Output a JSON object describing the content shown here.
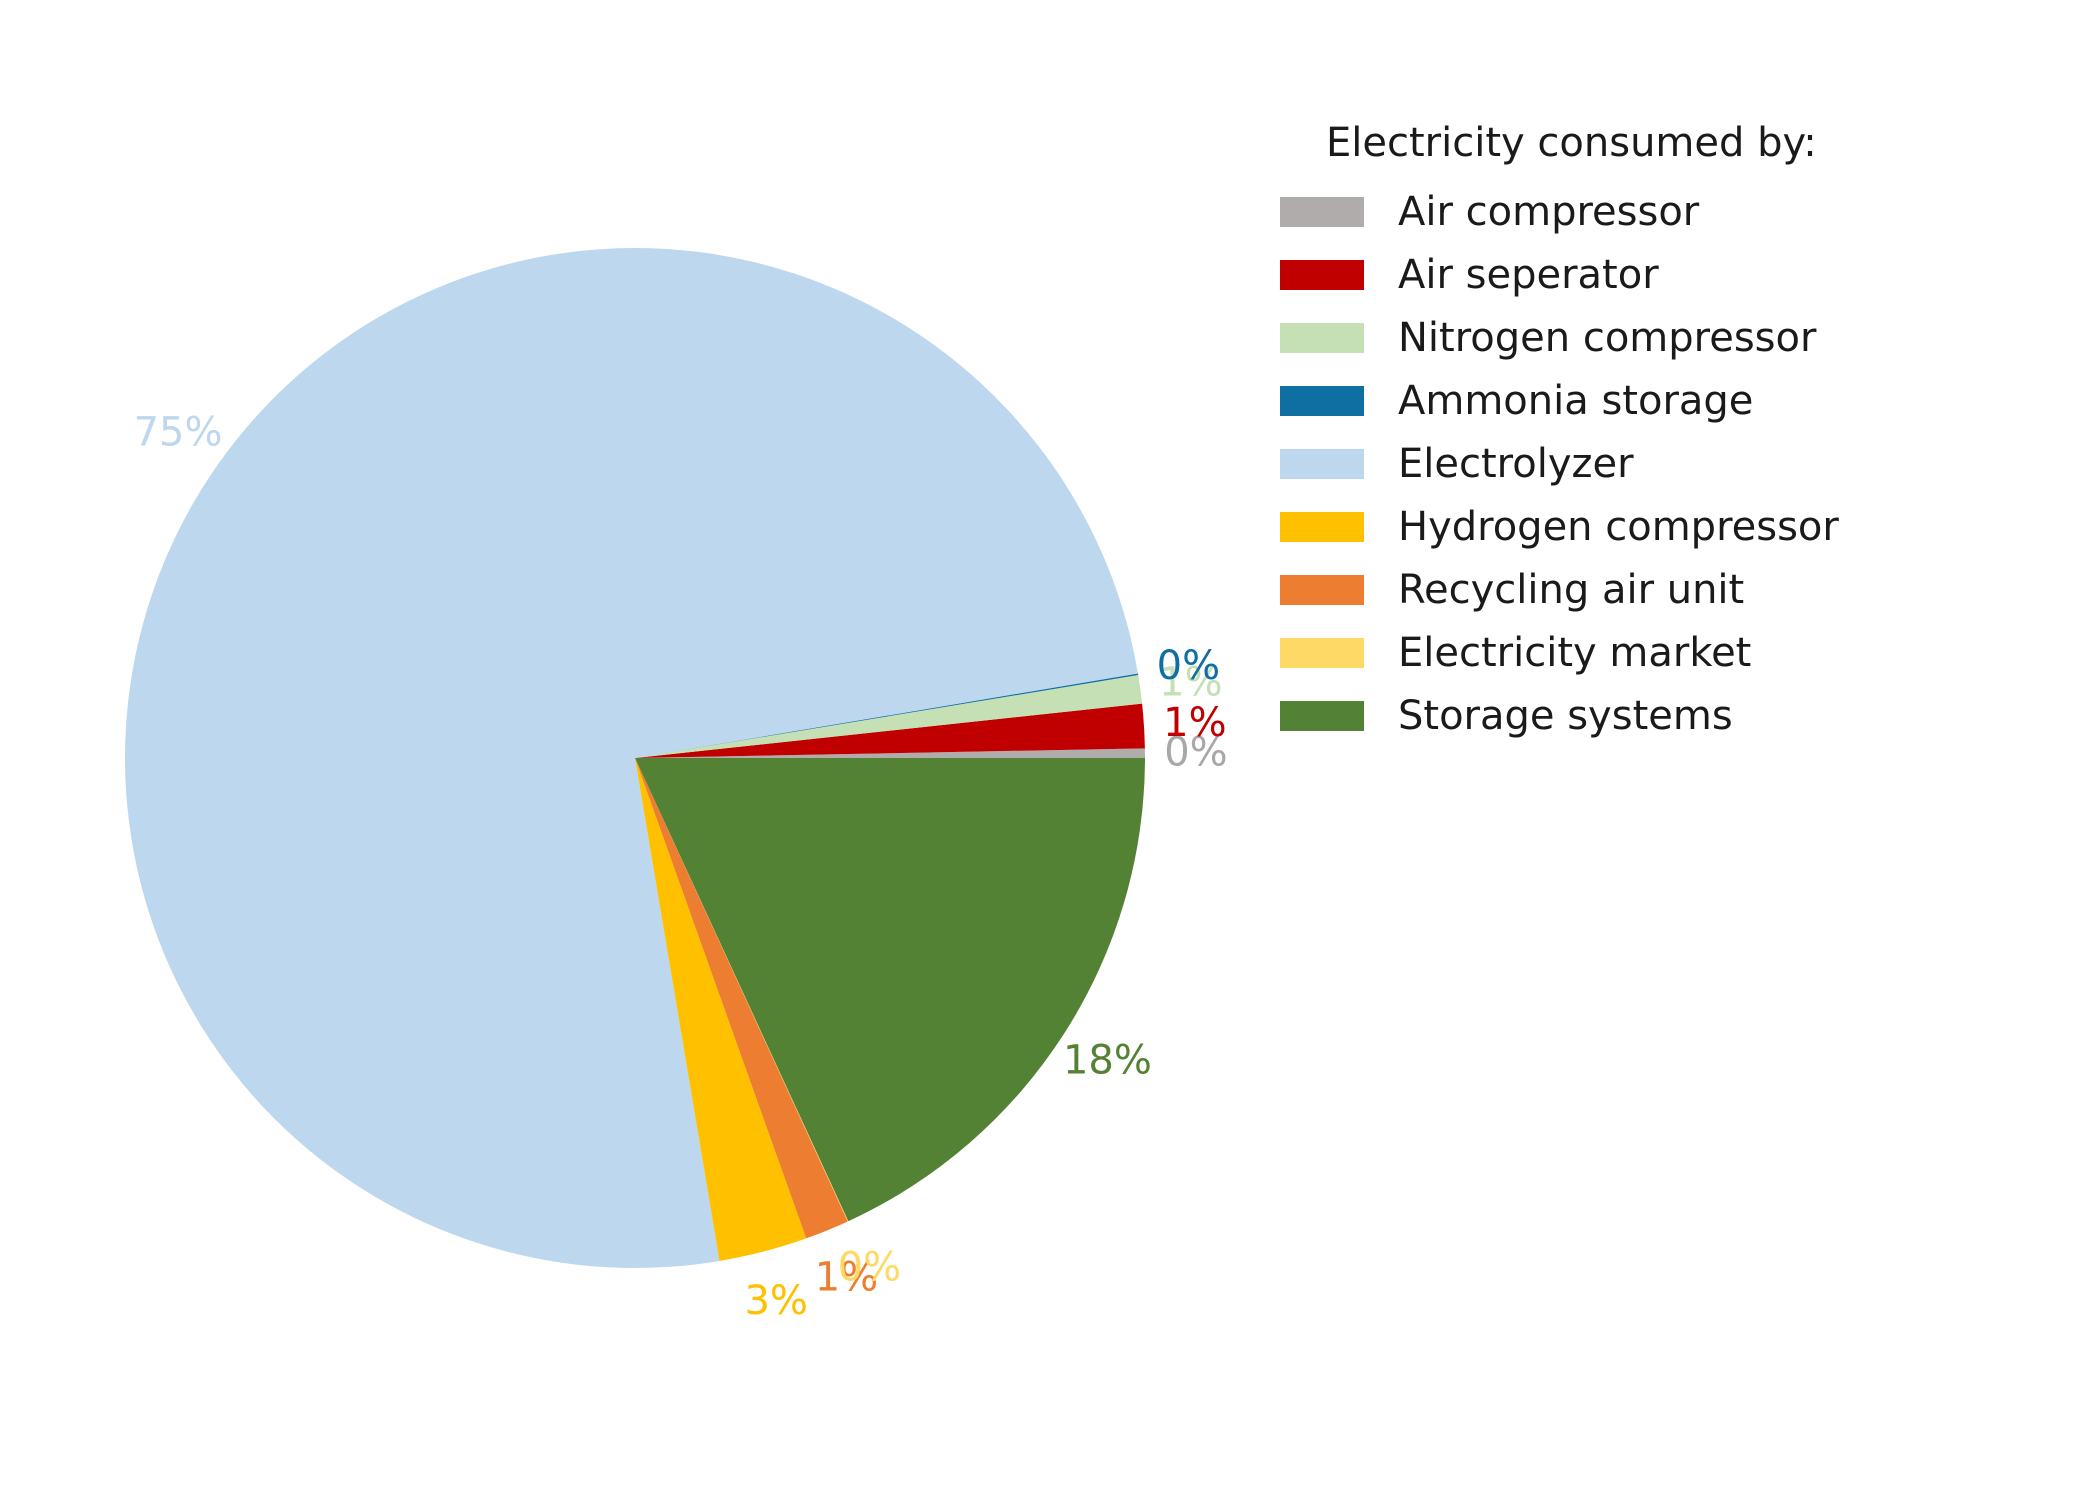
{
  "chart_data": {
    "type": "pie",
    "legend_title": "Electricity consumed by:",
    "legend_position": "right",
    "slices": [
      {
        "label": "Air compressor",
        "value": 0.3,
        "pct_label": "0%",
        "color": "#b0acac"
      },
      {
        "label": "Air seperator",
        "value": 1.4,
        "pct_label": "1%",
        "color": "#c00000"
      },
      {
        "label": "Nitrogen compressor",
        "value": 0.9,
        "pct_label": "1%",
        "color": "#c5e0b4"
      },
      {
        "label": "Ammonia storage",
        "value": 0.05,
        "pct_label": "0%",
        "color": "#0f6fa3"
      },
      {
        "label": "Electrolyzer",
        "value": 75.0,
        "pct_label": "75%",
        "color": "#bdd7ee"
      },
      {
        "label": "Hydrogen compressor",
        "value": 2.8,
        "pct_label": "3%",
        "color": "#ffc000"
      },
      {
        "label": "Recycling air unit",
        "value": 1.4,
        "pct_label": "1%",
        "color": "#ed7d31"
      },
      {
        "label": "Electricity market",
        "value": 0.02,
        "pct_label": "0%",
        "color": "#ffd966"
      },
      {
        "label": "Storage systems",
        "value": 18.13,
        "pct_label": "18%",
        "color": "#548235"
      }
    ]
  }
}
